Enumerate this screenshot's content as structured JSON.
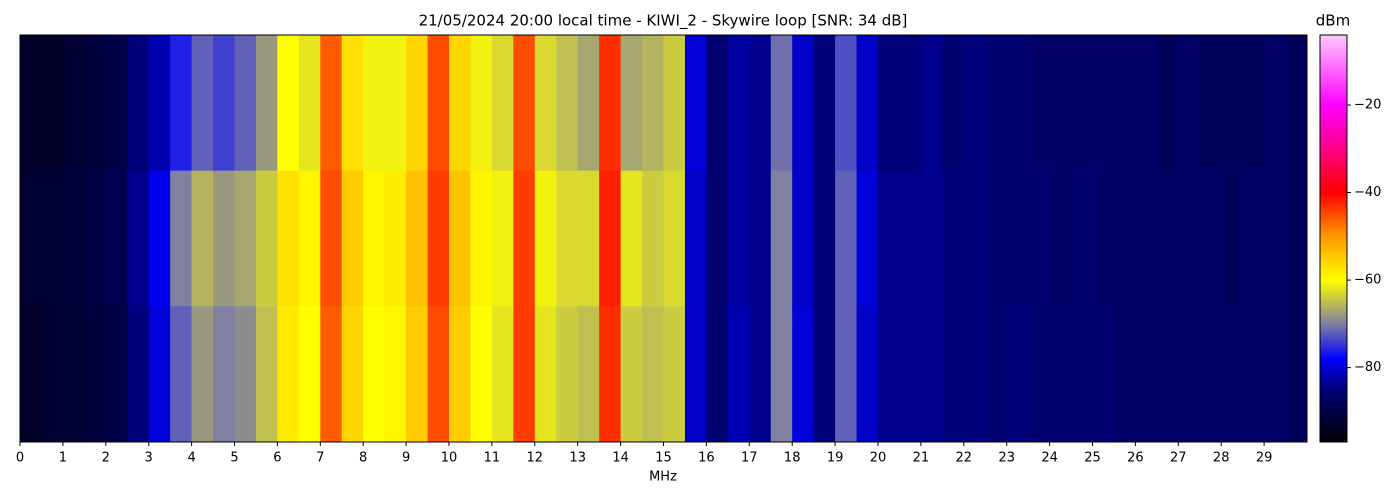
{
  "chart_data": {
    "type": "heatmap",
    "title": "21/05/2024 20:00 local time - KIWI_2 - Skywire loop [SNR: 34 dB]",
    "x_label": "MHz",
    "colorbar_label": "dBm",
    "xlim": [
      0,
      30
    ],
    "xticks": [
      0,
      1,
      2,
      3,
      4,
      5,
      6,
      7,
      8,
      9,
      10,
      11,
      12,
      13,
      14,
      15,
      16,
      17,
      18,
      19,
      20,
      21,
      22,
      23,
      24,
      25,
      26,
      27,
      28,
      29
    ],
    "bins": [
      0,
      0.5,
      1,
      1.5,
      2,
      2.5,
      3,
      3.5,
      4,
      4.5,
      5,
      5.5,
      6,
      6.5,
      7,
      7.5,
      8,
      8.5,
      9,
      9.5,
      10,
      10.5,
      11,
      11.5,
      12,
      12.5,
      13,
      13.5,
      14,
      14.5,
      15,
      15.5,
      16,
      16.5,
      17,
      17.5,
      18,
      18.5,
      19,
      19.5,
      20,
      20.5,
      21,
      21.5,
      22,
      22.5,
      23,
      23.5,
      24,
      24.5,
      25,
      25.5,
      26,
      26.5,
      27,
      27.5,
      28,
      28.5,
      29,
      29.5,
      30
    ],
    "z": [
      [
        -93,
        -93,
        -92,
        -91,
        -90,
        -85,
        -82,
        -76,
        -72,
        -74,
        -72,
        -68,
        -60,
        -62,
        -46,
        -57,
        -61,
        -61,
        -56,
        -45,
        -56,
        -61,
        -63,
        -45,
        -63,
        -65,
        -67,
        -43,
        -67,
        -66,
        -64,
        -80,
        -86,
        -83,
        -84,
        -71,
        -81,
        -85,
        -73,
        -81,
        -85,
        -85,
        -84,
        -86,
        -85,
        -86,
        -86,
        -87,
        -87,
        -87,
        -87,
        -87,
        -87,
        -88,
        -87,
        -88,
        -88,
        -88,
        -87,
        -88
      ],
      [
        -92,
        -92,
        -91,
        -90,
        -89,
        -84,
        -79,
        -70,
        -66,
        -68,
        -67,
        -64,
        -57,
        -59,
        -45,
        -55,
        -59,
        -58,
        -54,
        -44,
        -54,
        -59,
        -61,
        -44,
        -61,
        -63,
        -63,
        -42,
        -62,
        -64,
        -63,
        -81,
        -86,
        -83,
        -84,
        -70,
        -81,
        -85,
        -72,
        -80,
        -84,
        -84,
        -84,
        -85,
        -85,
        -86,
        -86,
        -86,
        -87,
        -86,
        -87,
        -87,
        -87,
        -87,
        -87,
        -87,
        -88,
        -87,
        -87,
        -88
      ],
      [
        -93,
        -92,
        -92,
        -91,
        -90,
        -85,
        -80,
        -72,
        -68,
        -70,
        -69,
        -65,
        -58,
        -60,
        -46,
        -56,
        -60,
        -59,
        -55,
        -45,
        -55,
        -60,
        -62,
        -44,
        -62,
        -64,
        -65,
        -43,
        -64,
        -65,
        -64,
        -81,
        -86,
        -82,
        -84,
        -70,
        -80,
        -85,
        -72,
        -81,
        -84,
        -84,
        -84,
        -85,
        -85,
        -86,
        -85,
        -86,
        -86,
        -86,
        -86,
        -87,
        -87,
        -87,
        -87,
        -87,
        -87,
        -87,
        -87,
        -88
      ]
    ],
    "zlim": [
      -97,
      -4
    ],
    "zticks": [
      {
        "value": -20,
        "label": "−20"
      },
      {
        "value": -40,
        "label": "−40"
      },
      {
        "value": -60,
        "label": "−60"
      },
      {
        "value": -80,
        "label": "−80"
      }
    ],
    "colormap": [
      {
        "value": -97,
        "color": "#000000"
      },
      {
        "value": -85,
        "color": "#00007a"
      },
      {
        "value": -78,
        "color": "#0000ff"
      },
      {
        "value": -70,
        "color": "#8080a0"
      },
      {
        "value": -60,
        "color": "#ffff00"
      },
      {
        "value": -50,
        "color": "#ff9900"
      },
      {
        "value": -40,
        "color": "#ff0000"
      },
      {
        "value": -30,
        "color": "#ff0088"
      },
      {
        "value": -20,
        "color": "#ff00ff"
      },
      {
        "value": -4,
        "color": "#ffc8ff"
      }
    ]
  }
}
